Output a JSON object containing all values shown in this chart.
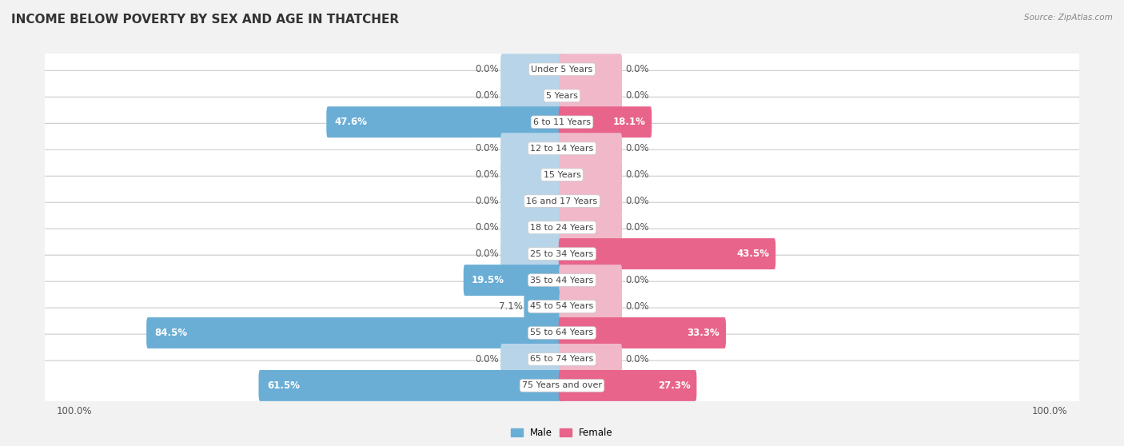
{
  "title": "INCOME BELOW POVERTY BY SEX AND AGE IN THATCHER",
  "source": "Source: ZipAtlas.com",
  "categories": [
    "Under 5 Years",
    "5 Years",
    "6 to 11 Years",
    "12 to 14 Years",
    "15 Years",
    "16 and 17 Years",
    "18 to 24 Years",
    "25 to 34 Years",
    "35 to 44 Years",
    "45 to 54 Years",
    "55 to 64 Years",
    "65 to 74 Years",
    "75 Years and over"
  ],
  "male": [
    0.0,
    0.0,
    47.6,
    0.0,
    0.0,
    0.0,
    0.0,
    0.0,
    19.5,
    7.1,
    84.5,
    0.0,
    61.5
  ],
  "female": [
    0.0,
    0.0,
    18.1,
    0.0,
    0.0,
    0.0,
    0.0,
    43.5,
    0.0,
    0.0,
    33.3,
    0.0,
    27.3
  ],
  "male_color_full": "#6aaed6",
  "male_color_zero": "#b8d4e8",
  "female_color_full": "#e8648a",
  "female_color_zero": "#f0b8c8",
  "row_bg_color": "#ffffff",
  "bg_color": "#f2f2f2",
  "max_val": 100.0,
  "zero_bar_width": 12.0,
  "title_fontsize": 11,
  "label_fontsize": 8.5,
  "tick_fontsize": 8.5,
  "cat_fontsize": 8.0
}
